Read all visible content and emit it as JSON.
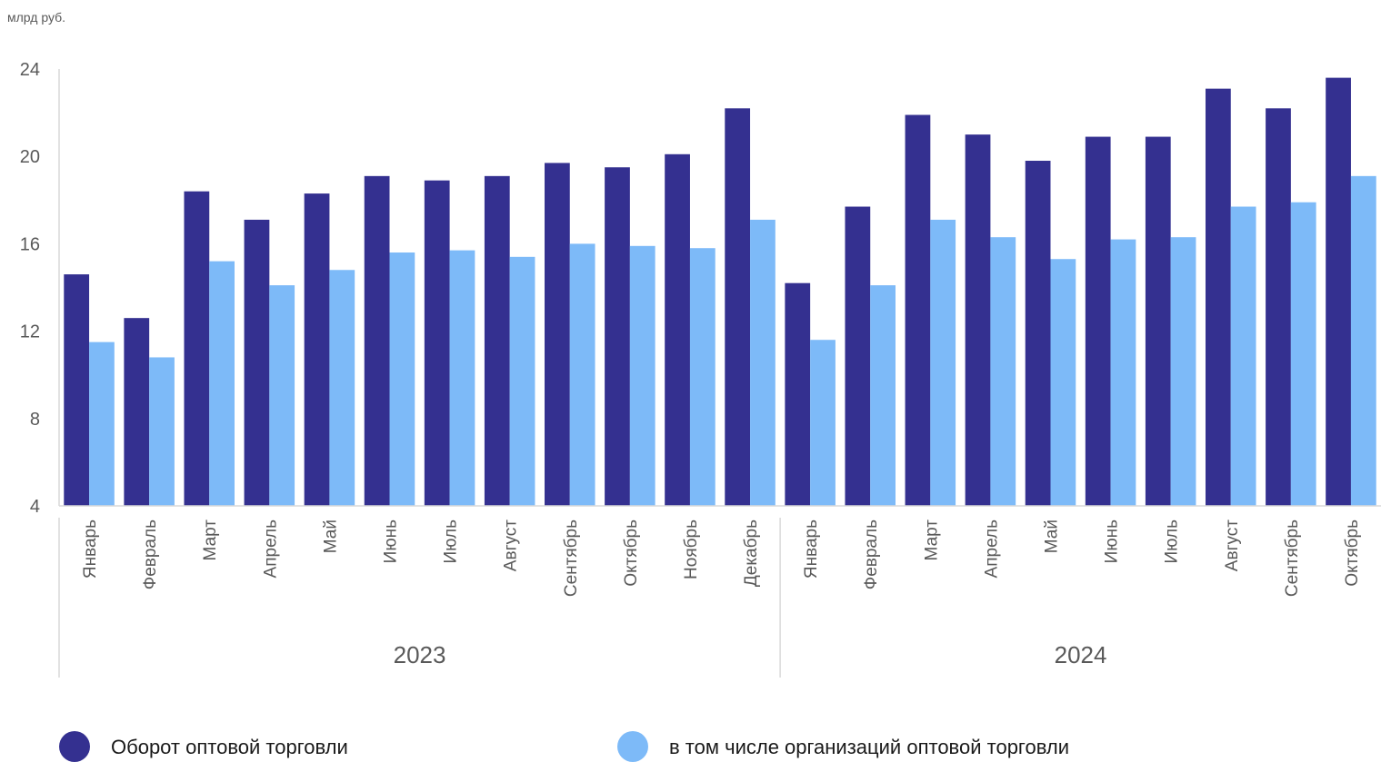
{
  "chart_data": {
    "type": "bar",
    "unit_label": "млрд руб.",
    "ylim": [
      4,
      24
    ],
    "yticks": [
      "4",
      "8",
      "12",
      "16",
      "20",
      "24"
    ],
    "grid": false,
    "groups": [
      {
        "label": "2023",
        "months": [
          "Январь",
          "Февраль",
          "Март",
          "Апрель",
          "Май",
          "Июнь",
          "Июль",
          "Август",
          "Сентябрь",
          "Октябрь",
          "Ноябрь",
          "Декабрь"
        ]
      },
      {
        "label": "2024",
        "months": [
          "Январь",
          "Февраль",
          "Март",
          "Апрель",
          "Май",
          "Июнь",
          "Июль",
          "Август",
          "Сентябрь",
          "Октябрь"
        ]
      }
    ],
    "series": [
      {
        "name": "Оборот оптовой торговли",
        "color": "#343090",
        "values": [
          14.6,
          12.6,
          18.4,
          17.1,
          18.3,
          19.1,
          18.9,
          19.1,
          19.7,
          19.5,
          20.1,
          22.2,
          14.2,
          17.7,
          21.9,
          21.0,
          19.8,
          20.9,
          20.9,
          23.1,
          22.2,
          23.6
        ]
      },
      {
        "name": "в том числе организаций оптовой торговли",
        "color": "#7dbaf8",
        "values": [
          11.5,
          10.8,
          15.2,
          14.1,
          14.8,
          15.6,
          15.7,
          15.4,
          16.0,
          15.9,
          15.8,
          17.1,
          11.6,
          14.1,
          17.1,
          16.3,
          15.3,
          16.2,
          16.3,
          17.7,
          17.9,
          19.1
        ]
      }
    ],
    "legend_position": "bottom"
  }
}
